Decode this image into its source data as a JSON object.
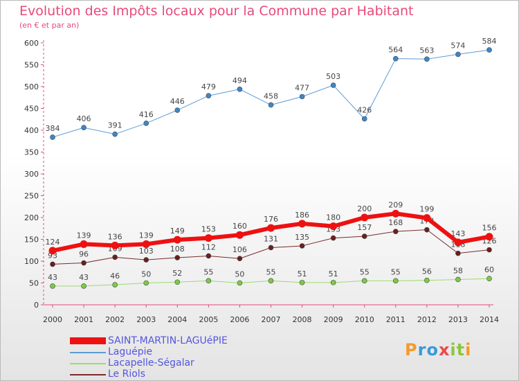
{
  "title": "Evolution des Impôts locaux pour la Commune par Habitant",
  "subtitle": "(en € et par an)",
  "logo": {
    "text": "Proxiti",
    "colors": [
      "#f59a2b",
      "#3a9ad9",
      "#e84a4a",
      "#8cc63f"
    ]
  },
  "chart_data": {
    "type": "line",
    "title": "Evolution des Impôts locaux pour la Commune par Habitant",
    "subtitle": "(en € et par an)",
    "x": [
      "2000",
      "2001",
      "2002",
      "2003",
      "2004",
      "2005",
      "2006",
      "2007",
      "2008",
      "2009",
      "2010",
      "2011",
      "2012",
      "2013",
      "2014"
    ],
    "ylim": [
      0,
      600
    ],
    "yticks": [
      0,
      50,
      100,
      150,
      200,
      250,
      300,
      350,
      400,
      450,
      500,
      550,
      600
    ],
    "grid": false,
    "legend_position": "bottom-left",
    "series": [
      {
        "name": "Laguépie",
        "color": "#5b9bd5",
        "marker": "#3c87c8",
        "width": 1,
        "values": [
          384,
          406,
          391,
          416,
          446,
          479,
          494,
          458,
          477,
          503,
          426,
          564,
          563,
          574,
          584
        ]
      },
      {
        "name": "Lacapelle-Ségalar",
        "color": "#9bdc6a",
        "marker": "#7ccb44",
        "width": 1,
        "values": [
          43,
          43,
          46,
          50,
          52,
          55,
          50,
          55,
          51,
          51,
          55,
          55,
          56,
          58,
          60
        ]
      },
      {
        "name": "Le Riols",
        "color": "#7a2a2a",
        "marker": "#6a1f1f",
        "width": 1,
        "values": [
          93,
          96,
          109,
          103,
          108,
          112,
          106,
          131,
          135,
          153,
          157,
          168,
          172,
          118,
          126
        ]
      },
      {
        "name": "SAINT-MARTIN-LAGUéPIE",
        "color": "#ee1111",
        "marker": "#ee1111",
        "width": 6,
        "values": [
          124,
          139,
          136,
          139,
          149,
          153,
          160,
          176,
          186,
          180,
          200,
          209,
          199,
          143,
          156
        ]
      }
    ]
  },
  "legend": [
    {
      "label": "SAINT-MARTIN-LAGUéPIE",
      "color": "#ee1111",
      "thick": true
    },
    {
      "label": "Laguépie",
      "color": "#5b9bd5",
      "thick": false
    },
    {
      "label": "Lacapelle-Ségalar",
      "color": "#9bdc6a",
      "thick": false
    },
    {
      "label": "Le Riols",
      "color": "#7a2a2a",
      "thick": false
    }
  ]
}
